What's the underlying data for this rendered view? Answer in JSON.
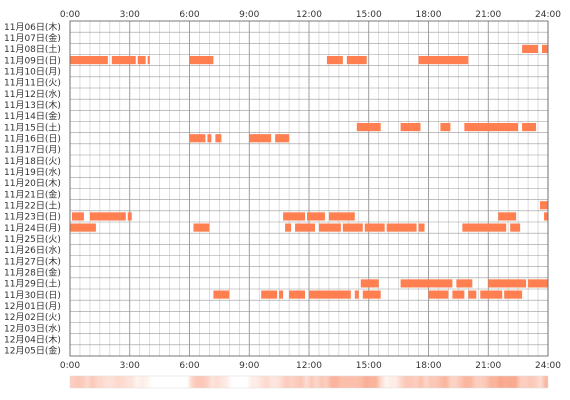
{
  "chart_data": {
    "type": "heatmap",
    "title": "",
    "xlabel": "",
    "ylabel": "",
    "x_ticks": [
      "0:00",
      "3:00",
      "6:00",
      "9:00",
      "12:00",
      "15:00",
      "18:00",
      "21:00",
      "24:00"
    ],
    "x_range": [
      0,
      24
    ],
    "grid": true,
    "colors": {
      "active": "#ff7f50",
      "grid": "#999999",
      "band_low": "#ffffff",
      "band_high": "#f9a58a"
    },
    "rows": [
      {
        "label": "11月06日(木)",
        "segments": []
      },
      {
        "label": "11月07日(金)",
        "segments": []
      },
      {
        "label": "11月08日(土)",
        "segments": [
          [
            22.7,
            23.5
          ],
          [
            23.7,
            24.0
          ]
        ]
      },
      {
        "label": "11月09日(日)",
        "segments": [
          [
            0.0,
            1.9
          ],
          [
            2.1,
            3.3
          ],
          [
            3.4,
            3.8
          ],
          [
            3.9,
            4.0
          ],
          [
            6.0,
            7.2
          ],
          [
            12.9,
            13.7
          ],
          [
            13.9,
            14.9
          ],
          [
            17.5,
            20.0
          ]
        ]
      },
      {
        "label": "11月10日(月)",
        "segments": []
      },
      {
        "label": "11月11日(火)",
        "segments": []
      },
      {
        "label": "11月12日(水)",
        "segments": []
      },
      {
        "label": "11月13日(木)",
        "segments": []
      },
      {
        "label": "11月14日(金)",
        "segments": []
      },
      {
        "label": "11月15日(土)",
        "segments": [
          [
            14.4,
            15.6
          ],
          [
            16.6,
            17.6
          ],
          [
            18.6,
            19.1
          ],
          [
            19.8,
            22.5
          ],
          [
            22.7,
            23.4
          ]
        ]
      },
      {
        "label": "11月16日(日)",
        "segments": [
          [
            6.0,
            6.8
          ],
          [
            6.9,
            7.1
          ],
          [
            7.3,
            7.6
          ],
          [
            9.0,
            10.1
          ],
          [
            10.3,
            11.0
          ]
        ]
      },
      {
        "label": "11月17日(月)",
        "segments": []
      },
      {
        "label": "11月18日(火)",
        "segments": []
      },
      {
        "label": "11月19日(水)",
        "segments": []
      },
      {
        "label": "11月20日(木)",
        "segments": []
      },
      {
        "label": "11月21日(金)",
        "segments": []
      },
      {
        "label": "11月22日(土)",
        "segments": [
          [
            23.6,
            24.0
          ]
        ]
      },
      {
        "label": "11月23日(日)",
        "segments": [
          [
            0.1,
            0.7
          ],
          [
            1.0,
            2.8
          ],
          [
            2.9,
            3.1
          ],
          [
            10.7,
            11.8
          ],
          [
            11.9,
            12.8
          ],
          [
            13.0,
            14.3
          ],
          [
            21.5,
            22.4
          ],
          [
            23.8,
            24.0
          ]
        ]
      },
      {
        "label": "11月24日(月)",
        "segments": [
          [
            0.0,
            1.3
          ],
          [
            6.2,
            7.0
          ],
          [
            10.8,
            11.1
          ],
          [
            11.3,
            12.3
          ],
          [
            12.5,
            13.6
          ],
          [
            13.7,
            14.7
          ],
          [
            14.8,
            15.8
          ],
          [
            15.9,
            17.4
          ],
          [
            17.5,
            17.8
          ],
          [
            19.7,
            21.9
          ],
          [
            22.1,
            22.6
          ]
        ]
      },
      {
        "label": "11月25日(火)",
        "segments": []
      },
      {
        "label": "11月26日(水)",
        "segments": []
      },
      {
        "label": "11月27日(木)",
        "segments": []
      },
      {
        "label": "11月28日(金)",
        "segments": []
      },
      {
        "label": "11月29日(土)",
        "segments": [
          [
            14.6,
            15.5
          ],
          [
            16.6,
            19.2
          ],
          [
            19.4,
            20.2
          ],
          [
            21.0,
            22.9
          ],
          [
            23.0,
            24.0
          ]
        ]
      },
      {
        "label": "11月30日(日)",
        "segments": [
          [
            7.2,
            8.0
          ],
          [
            9.6,
            10.4
          ],
          [
            10.5,
            10.7
          ],
          [
            11.0,
            11.8
          ],
          [
            12.0,
            14.1
          ],
          [
            14.3,
            14.5
          ],
          [
            14.7,
            15.6
          ],
          [
            18.0,
            19.0
          ],
          [
            19.2,
            19.8
          ],
          [
            20.0,
            20.4
          ],
          [
            20.6,
            21.7
          ],
          [
            21.8,
            22.7
          ]
        ]
      },
      {
        "label": "12月01日(月)",
        "segments": []
      },
      {
        "label": "12月02日(火)",
        "segments": []
      },
      {
        "label": "12月03日(水)",
        "segments": []
      },
      {
        "label": "12月04日(木)",
        "segments": []
      },
      {
        "label": "12月05日(金)",
        "segments": []
      }
    ]
  }
}
